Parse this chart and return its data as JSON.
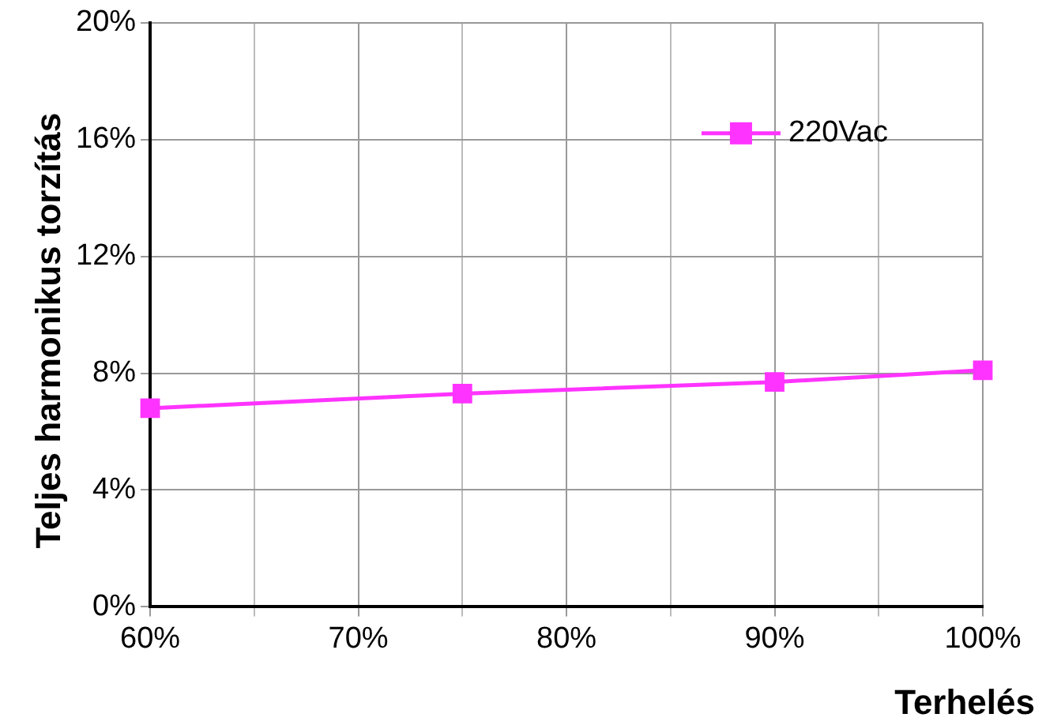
{
  "chart_data": {
    "type": "line",
    "xlabel": "Terhelés",
    "ylabel": "Teljes harmonikus torzítás",
    "x": [
      60,
      75,
      90,
      100
    ],
    "series": [
      {
        "name": "220Vac",
        "color": "#ff33ff",
        "values": [
          6.8,
          7.3,
          7.7,
          8.1
        ]
      }
    ],
    "xlim": [
      60,
      100
    ],
    "xticks": [
      {
        "value": 60,
        "label": "60%"
      },
      {
        "value": 65,
        "label": null
      },
      {
        "value": 70,
        "label": "70%"
      },
      {
        "value": 75,
        "label": null
      },
      {
        "value": 80,
        "label": "80%"
      },
      {
        "value": 85,
        "label": null
      },
      {
        "value": 90,
        "label": "90%"
      },
      {
        "value": 95,
        "label": null
      },
      {
        "value": 100,
        "label": "100%"
      }
    ],
    "ylim": [
      0,
      20
    ],
    "yticks": [
      {
        "value": 0,
        "label": "0%"
      },
      {
        "value": 4,
        "label": "4%"
      },
      {
        "value": 8,
        "label": "8%"
      },
      {
        "value": 12,
        "label": "12%"
      },
      {
        "value": 16,
        "label": "16%"
      },
      {
        "value": 20,
        "label": "20%"
      }
    ],
    "grid": true,
    "legend": "top right",
    "marker": "square",
    "line_style": "solid"
  }
}
